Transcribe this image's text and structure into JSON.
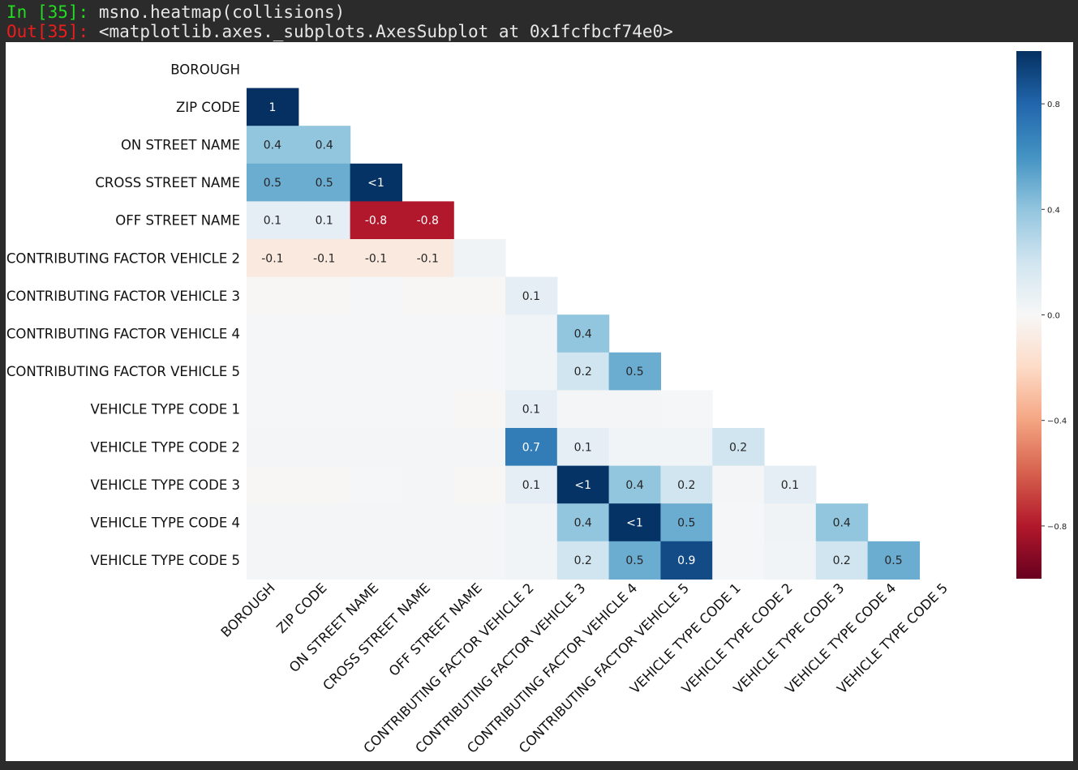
{
  "console": {
    "in_prompt": "In [35]:",
    "in_code": "msno.heatmap(collisions)",
    "out_prompt": "Out[35]:",
    "out_text": "<matplotlib.axes._subplots.AxesSubplot at 0x1fcfbcf74e0>"
  },
  "chart_data": {
    "type": "heatmap",
    "title": "",
    "labels": [
      "BOROUGH",
      "ZIP CODE",
      "ON STREET NAME",
      "CROSS STREET NAME",
      "OFF STREET NAME",
      "CONTRIBUTING FACTOR VEHICLE 2",
      "CONTRIBUTING FACTOR VEHICLE 3",
      "CONTRIBUTING FACTOR VEHICLE 4",
      "CONTRIBUTING FACTOR VEHICLE 5",
      "VEHICLE TYPE CODE 1",
      "VEHICLE TYPE CODE 2",
      "VEHICLE TYPE CODE 3",
      "VEHICLE TYPE CODE 4",
      "VEHICLE TYPE CODE 5"
    ],
    "matrix": [
      [],
      [
        1
      ],
      [
        0.4,
        0.4
      ],
      [
        0.5,
        0.5,
        0.99
      ],
      [
        0.1,
        0.1,
        -0.8,
        -0.8
      ],
      [
        -0.1,
        -0.1,
        -0.1,
        -0.1,
        0.04
      ],
      [
        -0.01,
        -0.01,
        0.01,
        -0.01,
        -0.01,
        0.1
      ],
      [
        0.01,
        0.01,
        0.01,
        0.01,
        0.01,
        0.03,
        0.4
      ],
      [
        0.01,
        0.01,
        0.01,
        0.01,
        0.01,
        0.03,
        0.2,
        0.5
      ],
      [
        0.01,
        0.01,
        0.01,
        0.01,
        -0.01,
        0.1,
        0.02,
        0.02,
        0.01
      ],
      [
        0.02,
        0.02,
        0.02,
        0.02,
        0.02,
        0.7,
        0.1,
        0.03,
        0.03,
        0.2
      ],
      [
        -0.01,
        -0.01,
        0.01,
        0.02,
        -0.01,
        0.1,
        0.99,
        0.4,
        0.2,
        0.02,
        0.1
      ],
      [
        0.02,
        0.02,
        0.02,
        0.02,
        0.02,
        0.03,
        0.4,
        0.99,
        0.5,
        0.01,
        0.04,
        0.4
      ],
      [
        0.02,
        0.02,
        0.02,
        0.02,
        0.02,
        0.03,
        0.2,
        0.5,
        0.9,
        0.01,
        0.03,
        0.2,
        0.5
      ]
    ],
    "annotations": [
      [],
      [
        "1"
      ],
      [
        "0.4",
        "0.4"
      ],
      [
        "0.5",
        "0.5",
        "<1"
      ],
      [
        "0.1",
        "0.1",
        "-0.8",
        "-0.8"
      ],
      [
        "-0.1",
        "-0.1",
        "-0.1",
        "-0.1",
        ""
      ],
      [
        "",
        "",
        "",
        "",
        "",
        "0.1"
      ],
      [
        "",
        "",
        "",
        "",
        "",
        "",
        "0.4"
      ],
      [
        "",
        "",
        "",
        "",
        "",
        "",
        "0.2",
        "0.5"
      ],
      [
        "",
        "",
        "",
        "",
        "",
        "0.1",
        "",
        "",
        ""
      ],
      [
        "",
        "",
        "",
        "",
        "",
        "0.7",
        "0.1",
        "",
        "",
        "0.2"
      ],
      [
        "",
        "",
        "",
        "",
        "",
        "0.1",
        "<1",
        "0.4",
        "0.2",
        "",
        "0.1"
      ],
      [
        "",
        "",
        "",
        "",
        "",
        "",
        "0.4",
        "<1",
        "0.5",
        "",
        "",
        "0.4"
      ],
      [
        "",
        "",
        "",
        "",
        "",
        "",
        "0.2",
        "0.5",
        "0.9",
        "",
        "",
        "0.2",
        "0.5"
      ]
    ],
    "colorbar": {
      "vmin": -1,
      "vmax": 1,
      "ticks": [
        0.8,
        0.4,
        0.0,
        -0.4,
        -0.8
      ],
      "tick_labels": [
        "0.8",
        "0.4",
        "0.0",
        "−0.4",
        "−0.8"
      ],
      "colormap": "RdBu"
    }
  }
}
